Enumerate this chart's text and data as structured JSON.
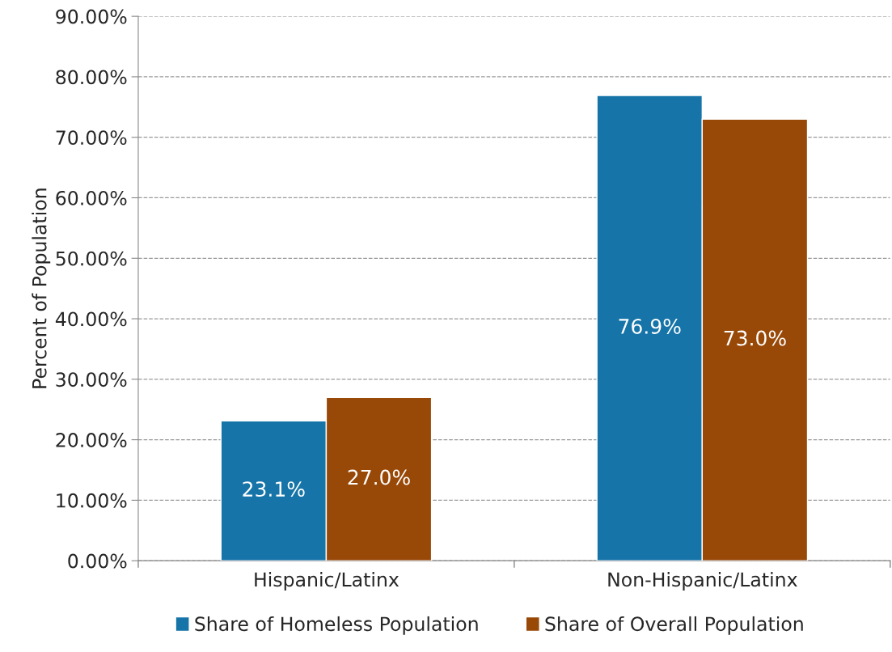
{
  "chart_data": {
    "type": "bar",
    "ylabel": "Percent of Population",
    "categories": [
      "Hispanic/Latinx",
      "Non-Hispanic/Latinx"
    ],
    "series": [
      {
        "name": "Share of Homeless Population",
        "color": "#1674a8",
        "values": [
          23.1,
          76.9
        ],
        "value_labels": [
          "23.1%",
          "76.9%"
        ]
      },
      {
        "name": "Share of Overall Population",
        "color": "#984807",
        "values": [
          27.0,
          73.0
        ],
        "value_labels": [
          "27.0%",
          "73.0%"
        ]
      }
    ],
    "ylim": [
      0,
      90
    ],
    "yticks": [
      {
        "value": 0,
        "label": "0.00%"
      },
      {
        "value": 10,
        "label": "10.00%"
      },
      {
        "value": 20,
        "label": "20.00%"
      },
      {
        "value": 30,
        "label": "30.00%"
      },
      {
        "value": 40,
        "label": "40.00%"
      },
      {
        "value": 50,
        "label": "50.00%"
      },
      {
        "value": 60,
        "label": "60.00%"
      },
      {
        "value": 70,
        "label": "70.00%"
      },
      {
        "value": 80,
        "label": "80.00%"
      },
      {
        "value": 90,
        "label": "90.00%"
      }
    ],
    "grid": "y",
    "line_style": "dashed",
    "legend": "bottom"
  }
}
